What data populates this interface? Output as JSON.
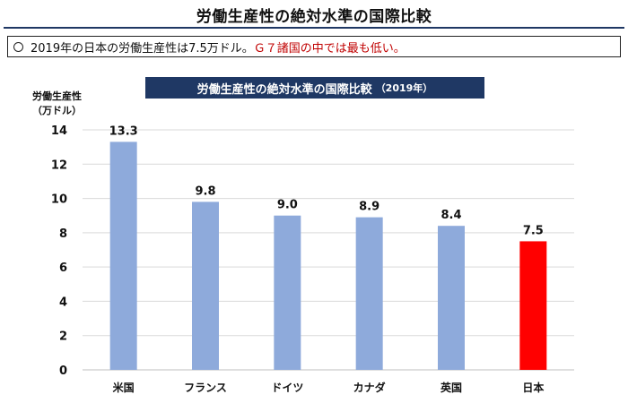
{
  "header": {
    "title": "労働生産性の絶対水準の国際比較"
  },
  "note": {
    "text_plain": "2019年の日本の労働生産性は7.5万ドル。",
    "text_red": "Ｇ７諸国の中では最も低い。"
  },
  "chart_data": {
    "type": "bar",
    "title": "労働生産性の絶対水準の国際比較",
    "subtitle": "（2019年）",
    "ylabel": "労働生産性",
    "yunit": "（万ドル）",
    "xlabel": "",
    "categories": [
      "米国",
      "フランス",
      "ドイツ",
      "カナダ",
      "英国",
      "日本"
    ],
    "values": [
      13.3,
      9.8,
      9.0,
      8.9,
      8.4,
      7.5
    ],
    "value_labels": [
      "13.3",
      "9.8",
      "9.0",
      "8.9",
      "8.4",
      "7.5"
    ],
    "bar_colors": [
      "#8eaadb",
      "#8eaadb",
      "#8eaadb",
      "#8eaadb",
      "#8eaadb",
      "#ff0000"
    ],
    "ylim": [
      0,
      14
    ],
    "yticks": [
      0,
      2,
      4,
      6,
      8,
      10,
      12,
      14
    ],
    "grid": true,
    "legend": "none"
  }
}
